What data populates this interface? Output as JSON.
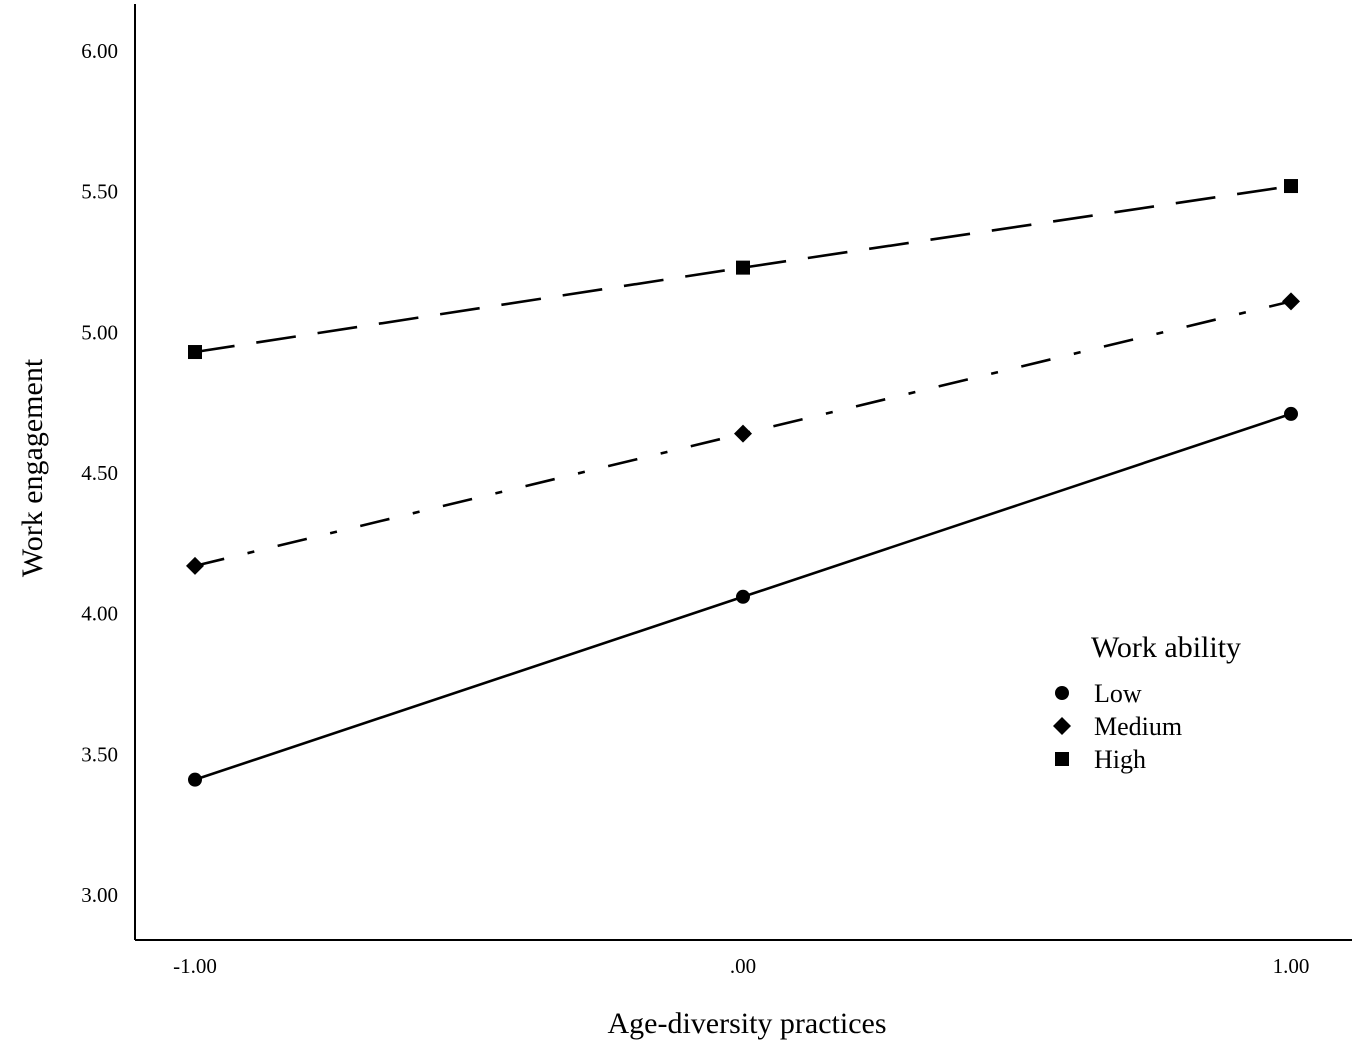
{
  "chart_data": {
    "type": "line",
    "title": "",
    "xlabel": "Age-diversity practices",
    "ylabel": "Work engagement",
    "x": [
      -1,
      0,
      1
    ],
    "x_tick_labels": [
      "-1.00",
      ".00",
      "1.00"
    ],
    "y_ticks": [
      3.0,
      3.5,
      4.0,
      4.5,
      5.0,
      5.5,
      6.0
    ],
    "y_tick_labels": [
      "3.00",
      "3.50",
      "4.00",
      "4.50",
      "5.00",
      "5.50",
      "6.00"
    ],
    "ylim": [
      2.84,
      6.17
    ],
    "xlim": [
      -1.11,
      1.11
    ],
    "grid": false,
    "legend": {
      "title": "Work ability",
      "placement": "bottom-right"
    },
    "series": [
      {
        "name": "Low",
        "values": [
          3.41,
          4.06,
          4.71
        ],
        "marker": "circle",
        "line_style": "solid"
      },
      {
        "name": "Medium",
        "values": [
          4.17,
          4.64,
          5.11
        ],
        "marker": "diamond",
        "line_style": "dash-dot"
      },
      {
        "name": "High",
        "values": [
          4.93,
          5.23,
          5.52
        ],
        "marker": "square",
        "line_style": "dashed"
      }
    ],
    "colors": {
      "line": "#000000",
      "background": "#ffffff"
    }
  }
}
